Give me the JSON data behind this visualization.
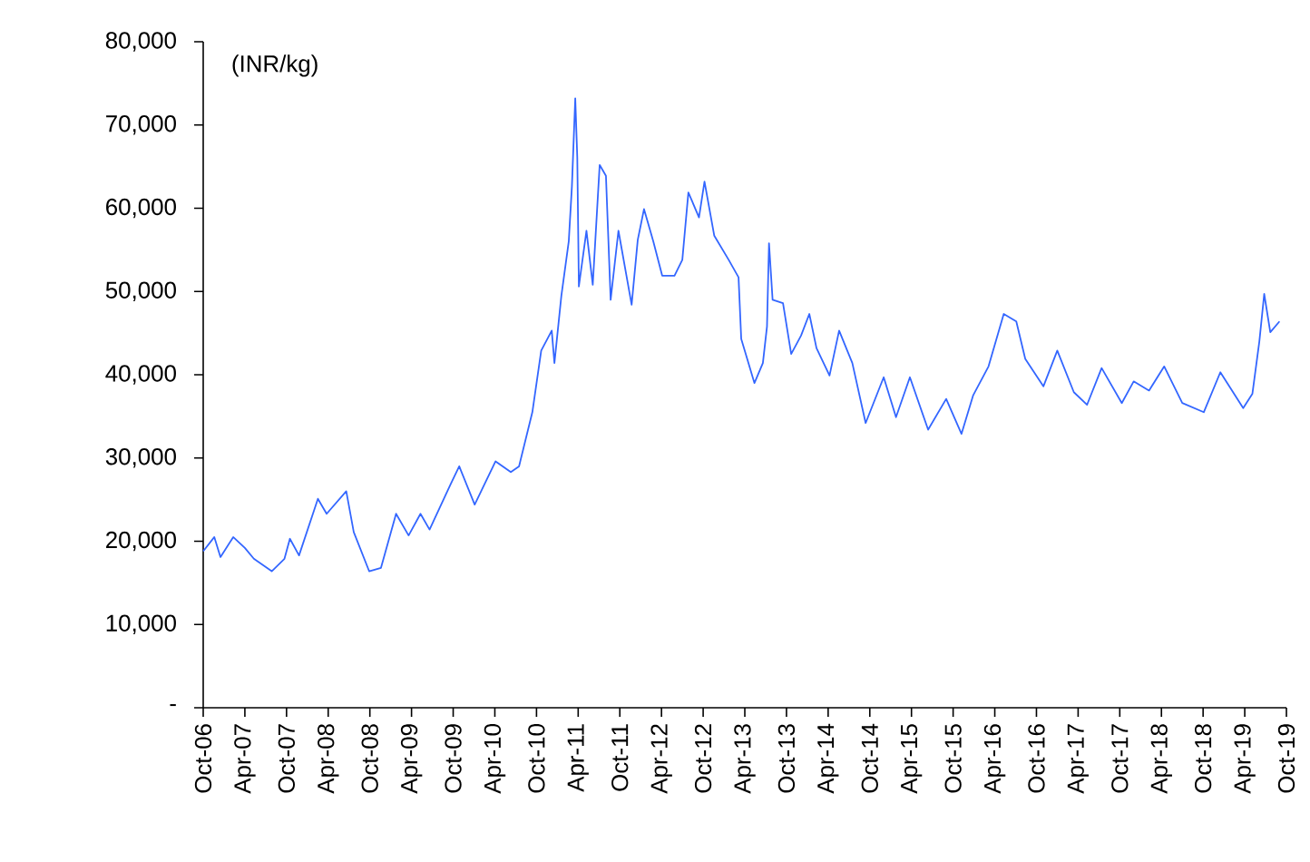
{
  "chart_data": {
    "type": "line",
    "ylabel": "(INR/kg)",
    "x": [
      "2006-10-01",
      "2006-11-19",
      "2006-12-16",
      "2007-02-10",
      "2007-04-01",
      "2007-05-10",
      "2007-07-28",
      "2007-09-22",
      "2007-10-16",
      "2007-11-25",
      "2008-02-16",
      "2008-03-25",
      "2008-06-19",
      "2008-07-22",
      "2008-09-28",
      "2008-11-19",
      "2009-01-25",
      "2009-03-19",
      "2009-05-10",
      "2009-06-19",
      "2009-09-19",
      "2009-10-28",
      "2010-01-04",
      "2010-04-04",
      "2010-06-10",
      "2010-07-16",
      "2010-09-13",
      "2010-10-22",
      "2010-12-07",
      "2010-12-19",
      "2011-01-19",
      "2011-02-19",
      "2011-03-04",
      "2011-03-19",
      "2011-03-28",
      "2011-04-04",
      "2011-05-07",
      "2011-06-04",
      "2011-07-04",
      "2011-08-01",
      "2011-08-22",
      "2011-09-25",
      "2011-11-22",
      "2011-12-19",
      "2012-01-16",
      "2012-02-25",
      "2012-04-04",
      "2012-05-28",
      "2012-07-01",
      "2012-07-28",
      "2012-09-13",
      "2012-10-07",
      "2012-11-19",
      "2013-01-22",
      "2013-03-04",
      "2013-03-16",
      "2013-05-13",
      "2013-06-19",
      "2013-07-07",
      "2013-07-16",
      "2013-08-01",
      "2013-09-16",
      "2013-10-22",
      "2013-12-04",
      "2014-01-10",
      "2014-02-10",
      "2014-04-07",
      "2014-05-19",
      "2014-07-16",
      "2014-09-13",
      "2014-12-01",
      "2015-01-25",
      "2015-03-25",
      "2015-06-13",
      "2015-09-01",
      "2015-11-07",
      "2015-12-28",
      "2016-03-04",
      "2016-05-10",
      "2016-07-04",
      "2016-08-13",
      "2016-11-01",
      "2017-01-01",
      "2017-03-13",
      "2017-05-10",
      "2017-07-13",
      "2017-10-10",
      "2017-12-01",
      "2018-02-07",
      "2018-04-13",
      "2018-07-01",
      "2018-10-04",
      "2018-12-16",
      "2019-03-25",
      "2019-05-04",
      "2019-06-04",
      "2019-06-25",
      "2019-07-22",
      "2019-09-01"
    ],
    "series": [
      {
        "color": "#3366ff",
        "values": [
          18800,
          20500,
          18100,
          20500,
          19200,
          17900,
          16400,
          17900,
          20300,
          18300,
          25100,
          23300,
          26000,
          21100,
          16400,
          16800,
          23300,
          20700,
          23300,
          21400,
          26800,
          29000,
          24400,
          29600,
          28300,
          29000,
          35500,
          42900,
          45300,
          41400,
          49500,
          56000,
          62600,
          73200,
          66100,
          50600,
          57300,
          50800,
          65200,
          63900,
          49000,
          57300,
          48400,
          56200,
          59900,
          56000,
          51900,
          51900,
          53800,
          61900,
          58900,
          63200,
          56700,
          53800,
          51700,
          44300,
          39000,
          41400,
          45800,
          55800,
          49000,
          48600,
          42500,
          44700,
          47300,
          43200,
          39900,
          45300,
          41400,
          34200,
          39700,
          34900,
          39700,
          33400,
          37100,
          32900,
          37500,
          41000,
          47300,
          46400,
          41900,
          38600,
          42900,
          37900,
          36400,
          40800,
          36600,
          39200,
          38100,
          41000,
          36600,
          35500,
          40300,
          36000,
          37700,
          44000,
          49700,
          45100,
          46400
        ]
      }
    ],
    "xlim": [
      "2006-10-01",
      "2019-10-01"
    ],
    "xticks": [
      {
        "value": "2006-10-01",
        "label": "Oct-06"
      },
      {
        "value": "2007-04-01",
        "label": "Apr-07"
      },
      {
        "value": "2007-10-01",
        "label": "Oct-07"
      },
      {
        "value": "2008-04-01",
        "label": "Apr-08"
      },
      {
        "value": "2008-10-01",
        "label": "Oct-08"
      },
      {
        "value": "2009-04-01",
        "label": "Apr-09"
      },
      {
        "value": "2009-10-01",
        "label": "Oct-09"
      },
      {
        "value": "2010-04-01",
        "label": "Apr-10"
      },
      {
        "value": "2010-10-01",
        "label": "Oct-10"
      },
      {
        "value": "2011-04-01",
        "label": "Apr-11"
      },
      {
        "value": "2011-10-01",
        "label": "Oct-11"
      },
      {
        "value": "2012-04-01",
        "label": "Apr-12"
      },
      {
        "value": "2012-10-01",
        "label": "Oct-12"
      },
      {
        "value": "2013-04-01",
        "label": "Apr-13"
      },
      {
        "value": "2013-10-01",
        "label": "Oct-13"
      },
      {
        "value": "2014-04-01",
        "label": "Apr-14"
      },
      {
        "value": "2014-10-01",
        "label": "Oct-14"
      },
      {
        "value": "2015-04-01",
        "label": "Apr-15"
      },
      {
        "value": "2015-10-01",
        "label": "Oct-15"
      },
      {
        "value": "2016-04-01",
        "label": "Apr-16"
      },
      {
        "value": "2016-10-01",
        "label": "Oct-16"
      },
      {
        "value": "2017-04-01",
        "label": "Apr-17"
      },
      {
        "value": "2017-10-01",
        "label": "Oct-17"
      },
      {
        "value": "2018-04-01",
        "label": "Apr-18"
      },
      {
        "value": "2018-10-01",
        "label": "Oct-18"
      },
      {
        "value": "2019-04-01",
        "label": "Apr-19"
      },
      {
        "value": "2019-10-01",
        "label": "Oct-19"
      }
    ],
    "ylim": [
      0,
      80000
    ],
    "yticks": [
      {
        "value": 0,
        "label": "-"
      },
      {
        "value": 10000,
        "label": "10,000"
      },
      {
        "value": 20000,
        "label": "20,000"
      },
      {
        "value": 30000,
        "label": "30,000"
      },
      {
        "value": 40000,
        "label": "40,000"
      },
      {
        "value": 50000,
        "label": "50,000"
      },
      {
        "value": 60000,
        "label": "60,000"
      },
      {
        "value": 70000,
        "label": "70,000"
      },
      {
        "value": 80000,
        "label": "80,000"
      }
    ],
    "grid": false,
    "marker": "none",
    "line_style": "solid"
  }
}
